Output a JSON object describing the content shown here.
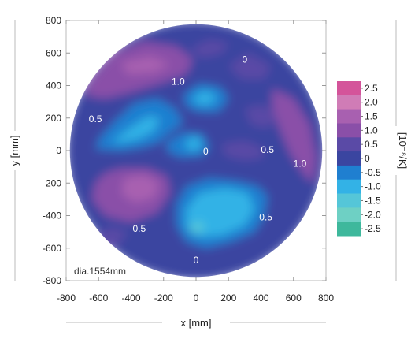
{
  "chart_data": {
    "type": "heatmap",
    "xlabel": "x [mm]",
    "ylabel": "y [mm]",
    "xlim": [
      -800,
      800
    ],
    "ylim": [
      -800,
      800
    ],
    "x_ticks": [
      "-800",
      "-600",
      "-400",
      "-200",
      "0",
      "200",
      "400",
      "600",
      "800"
    ],
    "y_ticks": [
      "800",
      "600",
      "400",
      "200",
      "0",
      "-200",
      "-400",
      "-600",
      "-800"
    ],
    "x_tick_values": [
      -800,
      -600,
      -400,
      -200,
      0,
      200,
      400,
      600,
      800
    ],
    "y_tick_values": [
      800,
      600,
      400,
      200,
      0,
      -200,
      -400,
      -600,
      -800
    ],
    "annotation": "dia.1554mm",
    "diameter_mm": 1554,
    "grid": false,
    "colorbar": {
      "title": "[10⁻⁸/K]",
      "position": "right",
      "labels": [
        "2.5",
        "2.0",
        "1.5",
        "1.0",
        "0.5",
        "0",
        "-0.5",
        "-1.0",
        "-1.5",
        "-2.0",
        "-2.5"
      ],
      "values": [
        2.5,
        2.0,
        1.5,
        1.0,
        0.5,
        0,
        -0.5,
        -1.0,
        -1.5,
        -2.0,
        -2.5
      ],
      "colors": [
        "#d4549a",
        "#d07cb6",
        "#a860b0",
        "#8a4fa8",
        "#5a4aa6",
        "#3a45a0",
        "#1f7fd0",
        "#33b2e6",
        "#55c6d8",
        "#6ed0c4",
        "#3eb89c"
      ]
    },
    "contour_labels": [
      {
        "text": "0",
        "x": 300,
        "y": 560
      },
      {
        "text": "1.0",
        "x": -110,
        "y": 425
      },
      {
        "text": "0.5",
        "x": -620,
        "y": 195
      },
      {
        "text": "0",
        "x": 60,
        "y": -5
      },
      {
        "text": "0.5",
        "x": 440,
        "y": 5
      },
      {
        "text": "1.0",
        "x": 640,
        "y": -80
      },
      {
        "text": "0.5",
        "x": -350,
        "y": -480
      },
      {
        "text": "-0.5",
        "x": 420,
        "y": -410
      },
      {
        "text": "0",
        "x": 0,
        "y": -675
      }
    ],
    "regions": [
      {
        "value": 0.0,
        "points": [
          [
            -760,
            160
          ],
          [
            -700,
            360
          ],
          [
            -540,
            560
          ],
          [
            -300,
            700
          ],
          [
            0,
            770
          ],
          [
            300,
            700
          ],
          [
            540,
            560
          ],
          [
            700,
            360
          ],
          [
            770,
            0
          ],
          [
            700,
            -360
          ],
          [
            540,
            -560
          ],
          [
            300,
            -700
          ],
          [
            0,
            -770
          ],
          [
            -300,
            -700
          ],
          [
            -540,
            -560
          ],
          [
            -700,
            -360
          ],
          [
            -770,
            0
          ]
        ]
      },
      {
        "value": 1.0,
        "points": [
          [
            -650,
            430
          ],
          [
            -520,
            590
          ],
          [
            -320,
            670
          ],
          [
            -120,
            640
          ],
          [
            -20,
            560
          ],
          [
            -60,
            470
          ],
          [
            -200,
            420
          ],
          [
            -400,
            360
          ],
          [
            -560,
            320
          ]
        ]
      },
      {
        "value": 1.5,
        "points": [
          [
            -460,
            540
          ],
          [
            -280,
            580
          ],
          [
            -160,
            530
          ],
          [
            -260,
            480
          ],
          [
            -420,
            470
          ]
        ]
      },
      {
        "value": 1.0,
        "points": [
          [
            -660,
            420
          ],
          [
            -560,
            440
          ],
          [
            -440,
            380
          ],
          [
            -560,
            320
          ],
          [
            -680,
            340
          ]
        ]
      },
      {
        "value": 0.5,
        "points": [
          [
            -40,
            620
          ],
          [
            80,
            680
          ],
          [
            200,
            660
          ],
          [
            160,
            600
          ],
          [
            40,
            570
          ]
        ]
      },
      {
        "value": 0.5,
        "points": [
          [
            200,
            520
          ],
          [
            320,
            600
          ],
          [
            460,
            520
          ],
          [
            420,
            440
          ],
          [
            280,
            440
          ]
        ]
      },
      {
        "value": 1.0,
        "points": [
          [
            470,
            380
          ],
          [
            600,
            320
          ],
          [
            700,
            160
          ],
          [
            740,
            -40
          ],
          [
            720,
            -200
          ],
          [
            660,
            -140
          ],
          [
            580,
            -20
          ],
          [
            520,
            120
          ],
          [
            470,
            260
          ]
        ]
      },
      {
        "value": 0.5,
        "points": [
          [
            160,
            40
          ],
          [
            300,
            60
          ],
          [
            400,
            20
          ],
          [
            420,
            -40
          ],
          [
            300,
            -60
          ],
          [
            180,
            -30
          ]
        ]
      },
      {
        "value": 0.5,
        "points": [
          [
            300,
            260
          ],
          [
            420,
            280
          ],
          [
            500,
            200
          ],
          [
            440,
            140
          ],
          [
            340,
            160
          ]
        ]
      },
      {
        "value": 1.0,
        "points": [
          [
            -560,
            -140
          ],
          [
            -460,
            -110
          ],
          [
            -300,
            -110
          ],
          [
            -180,
            -160
          ],
          [
            -160,
            -260
          ],
          [
            -240,
            -380
          ],
          [
            -400,
            -440
          ],
          [
            -560,
            -400
          ],
          [
            -640,
            -300
          ],
          [
            -620,
            -200
          ]
        ]
      },
      {
        "value": 1.5,
        "points": [
          [
            -440,
            -170
          ],
          [
            -320,
            -150
          ],
          [
            -230,
            -200
          ],
          [
            -260,
            -290
          ],
          [
            -380,
            -320
          ],
          [
            -460,
            -260
          ]
        ]
      },
      {
        "value": 0.5,
        "points": [
          [
            -620,
            -520
          ],
          [
            -520,
            -470
          ],
          [
            -420,
            -500
          ],
          [
            -500,
            -600
          ],
          [
            -600,
            -600
          ]
        ]
      },
      {
        "value": -0.5,
        "points": [
          [
            -620,
            10
          ],
          [
            -590,
            80
          ],
          [
            -500,
            180
          ],
          [
            -380,
            290
          ],
          [
            -240,
            320
          ],
          [
            -130,
            260
          ],
          [
            -80,
            170
          ],
          [
            -160,
            110
          ],
          [
            -230,
            50
          ],
          [
            -330,
            20
          ],
          [
            -460,
            0
          ]
        ]
      },
      {
        "value": -1.0,
        "points": [
          [
            -520,
            50
          ],
          [
            -420,
            130
          ],
          [
            -300,
            210
          ],
          [
            -220,
            200
          ],
          [
            -260,
            120
          ],
          [
            -360,
            70
          ],
          [
            -460,
            50
          ]
        ]
      },
      {
        "value": -0.5,
        "points": [
          [
            -80,
            340
          ],
          [
            20,
            410
          ],
          [
            150,
            390
          ],
          [
            200,
            320
          ],
          [
            140,
            240
          ],
          [
            20,
            240
          ],
          [
            -60,
            270
          ]
        ]
      },
      {
        "value": -1.0,
        "points": [
          [
            -20,
            330
          ],
          [
            60,
            370
          ],
          [
            130,
            330
          ],
          [
            80,
            280
          ],
          [
            0,
            290
          ]
        ]
      },
      {
        "value": -0.5,
        "points": [
          [
            -180,
            50
          ],
          [
            -80,
            110
          ],
          [
            40,
            100
          ],
          [
            80,
            20
          ],
          [
            40,
            -30
          ],
          [
            -100,
            -40
          ],
          [
            -180,
            0
          ]
        ]
      },
      {
        "value": -1.0,
        "points": [
          [
            -60,
            60
          ],
          [
            0,
            90
          ],
          [
            40,
            40
          ],
          [
            0,
            0
          ],
          [
            -60,
            10
          ]
        ]
      },
      {
        "value": -0.5,
        "points": [
          [
            -120,
            -330
          ],
          [
            -60,
            -220
          ],
          [
            80,
            -170
          ],
          [
            260,
            -190
          ],
          [
            380,
            -220
          ],
          [
            440,
            -280
          ],
          [
            420,
            -400
          ],
          [
            360,
            -500
          ],
          [
            220,
            -560
          ],
          [
            60,
            -600
          ],
          [
            -60,
            -560
          ],
          [
            -120,
            -460
          ]
        ]
      },
      {
        "value": -1.0,
        "points": [
          [
            -60,
            -360
          ],
          [
            20,
            -260
          ],
          [
            180,
            -230
          ],
          [
            320,
            -260
          ],
          [
            360,
            -360
          ],
          [
            300,
            -460
          ],
          [
            160,
            -520
          ],
          [
            20,
            -530
          ],
          [
            -60,
            -470
          ]
        ]
      },
      {
        "value": -1.5,
        "points": [
          [
            -40,
            -460
          ],
          [
            20,
            -430
          ],
          [
            60,
            -470
          ],
          [
            20,
            -510
          ],
          [
            -40,
            -500
          ]
        ]
      }
    ]
  }
}
